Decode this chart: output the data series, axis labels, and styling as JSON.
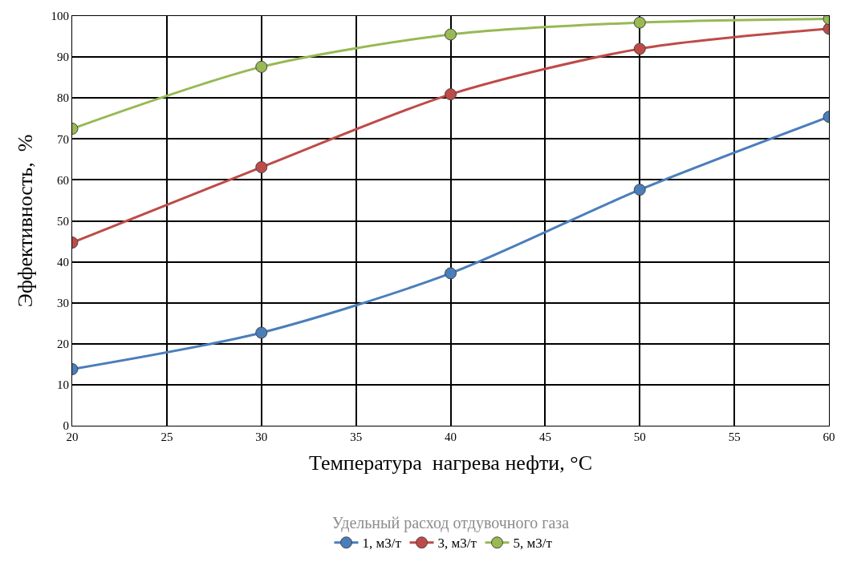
{
  "chart_data": {
    "type": "line",
    "xlabel": "Температура  нагрева нефти, °C",
    "ylabel": "Эффективность,  %",
    "legend_title": "Удельный расход отдувочного газа",
    "x": [
      20,
      30,
      40,
      50,
      60
    ],
    "series": [
      {
        "name": "1, м3/т",
        "color": "#4a7ebb",
        "values": [
          13.8,
          22.7,
          37.2,
          57.6,
          75.4
        ]
      },
      {
        "name": "3, м3/т",
        "color": "#be4b48",
        "values": [
          44.7,
          63.1,
          80.9,
          92.0,
          96.9
        ]
      },
      {
        "name": "5, м3/т",
        "color": "#98b954",
        "values": [
          72.5,
          87.6,
          95.5,
          98.4,
          99.3
        ]
      }
    ],
    "xlim": [
      20,
      60
    ],
    "xticks": [
      20,
      25,
      30,
      35,
      40,
      45,
      50,
      55,
      60
    ],
    "ylim": [
      0,
      100
    ],
    "yticks": [
      0,
      10,
      20,
      30,
      40,
      50,
      60,
      70,
      80,
      90,
      100
    ],
    "grid": true,
    "legend": "bottom",
    "marker": "circle",
    "line_style": "solid"
  }
}
